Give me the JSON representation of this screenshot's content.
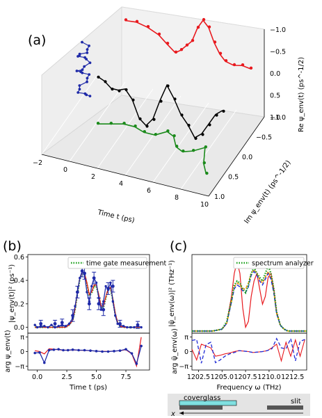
{
  "panels": {
    "a": "(a)",
    "b": "(b)",
    "c": "(c)"
  },
  "colors": {
    "red": "#e8191e",
    "black": "#000000",
    "blue": "#1f2aa8",
    "green": "#1b8a1b",
    "orange": "#ff8c00",
    "dash_blue": "#1f2ad6",
    "dot_green": "#1aa01a",
    "cyan": "#7fdfe0"
  },
  "chart_data": [
    {
      "type": "line",
      "panel": "a",
      "title": "",
      "xlabel": "Time t (ps)",
      "ylabel": "Im ψ_env(t) (ps^-1/2)",
      "zlabel": "Re ψ_env(t) (ps^-1/2)",
      "x_ticks": [
        "−2",
        "0",
        "2",
        "4",
        "6",
        "8",
        "10"
      ],
      "y_ticks": [
        "−1.0",
        "−0.5",
        "0.0",
        "0.5",
        "1.0"
      ],
      "z_ticks": [
        "−1.0",
        "−0.5",
        "0.0",
        "0.5",
        "1.0"
      ],
      "series": [
        {
          "projection": "Re",
          "color": "red",
          "t": [
            0.0,
            0.8,
            1.6,
            2.4,
            3.0,
            3.6,
            4.0,
            4.4,
            4.8,
            5.2,
            5.6,
            6.0,
            6.4,
            6.8,
            7.2,
            7.8,
            8.4,
            9.0
          ],
          "value": [
            0.45,
            0.48,
            0.42,
            0.3,
            0.12,
            -0.05,
            0.05,
            0.2,
            0.35,
            0.72,
            0.95,
            0.8,
            0.45,
            0.2,
            0.05,
            0.0,
            0.05,
            0.02
          ]
        },
        {
          "projection": "complex",
          "color": "black",
          "t": [
            0.0,
            0.5,
            1.0,
            1.5,
            2.0,
            2.5,
            3.0,
            3.5,
            4.0,
            4.5,
            5.0,
            5.5,
            6.0,
            6.5,
            7.0,
            7.5,
            8.0,
            8.5,
            9.0
          ],
          "value": [
            -0.05,
            -0.1,
            -0.2,
            -0.2,
            -0.15,
            -0.3,
            -0.6,
            -0.7,
            -0.55,
            -0.2,
            0.1,
            -0.1,
            -0.35,
            -0.5,
            -0.7,
            -0.6,
            -0.4,
            -0.2,
            -0.1
          ]
        },
        {
          "projection": "Im",
          "color": "green",
          "t": [
            0.0,
            0.8,
            1.6,
            2.4,
            3.2,
            4.0,
            4.6,
            5.2,
            5.8,
            6.4,
            7.0,
            7.6,
            8.2,
            8.8
          ],
          "value": [
            0.0,
            0.05,
            0.1,
            0.1,
            0.05,
            0.05,
            0.15,
            0.1,
            -0.05,
            -0.1,
            -0.05,
            0.05,
            -0.2,
            -0.35
          ]
        },
        {
          "projection": "Re-Im",
          "color": "blue",
          "t": [
            0,
            1,
            2,
            3,
            4,
            5,
            6,
            7,
            8,
            9,
            10,
            11,
            12,
            13,
            14,
            15,
            16,
            17,
            18,
            19,
            20,
            21,
            22,
            23
          ],
          "value": [
            0.1,
            0.4,
            0.7,
            0.9,
            0.6,
            0.3,
            0.0,
            -0.3,
            -0.5,
            -0.2,
            0.1,
            0.3,
            0.0,
            -0.4,
            -0.7,
            -0.9,
            -0.6,
            -0.3,
            0.0,
            0.3,
            0.5,
            0.2,
            -0.1,
            -0.4
          ]
        }
      ]
    },
    {
      "type": "line",
      "panel": "b",
      "title": "",
      "xlabel": "Time t (ps)",
      "ylabel_top": "|ψ_env(t)|² (ps⁻¹)",
      "ylabel_bottom": "arg ψ_env(t)",
      "legend": "time gate measurement",
      "legend_position": "top-right",
      "xlim": [
        -0.8,
        9.5
      ],
      "x_ticks": [
        "0.0",
        "2.5",
        "5.0",
        "7.5"
      ],
      "ylim_top": [
        -0.05,
        0.62
      ],
      "y_ticks_top": [
        "0.0",
        "0.2",
        "0.4",
        "0.6"
      ],
      "y_ticks_bottom": [
        "π",
        "0",
        "−π"
      ],
      "magnitude": {
        "x": [
          -0.2,
          0.0,
          0.3,
          0.6,
          0.9,
          1.2,
          1.5,
          1.8,
          2.1,
          2.4,
          2.7,
          3.0,
          3.2,
          3.4,
          3.6,
          3.8,
          4.0,
          4.2,
          4.4,
          4.6,
          4.8,
          5.0,
          5.2,
          5.4,
          5.6,
          5.8,
          6.0,
          6.2,
          6.4,
          6.6,
          6.8,
          7.0,
          7.3,
          7.6,
          7.9,
          8.2,
          8.5,
          8.8
        ],
        "data": [
          0.02,
          0.0,
          0.01,
          0.01,
          0.0,
          0.02,
          0.0,
          0.01,
          0.02,
          0.01,
          0.03,
          0.08,
          0.18,
          0.3,
          0.42,
          0.48,
          0.45,
          0.3,
          0.22,
          0.35,
          0.42,
          0.38,
          0.25,
          0.15,
          0.22,
          0.35,
          0.32,
          0.38,
          0.22,
          0.1,
          0.03,
          0.02,
          0.01,
          0.0,
          0.0,
          0.0,
          0.01,
          0.0
        ],
        "fit_red": [
          0.0,
          0.0,
          0.0,
          0.0,
          0.0,
          0.0,
          0.0,
          0.0,
          0.0,
          0.0,
          0.02,
          0.06,
          0.16,
          0.3,
          0.42,
          0.47,
          0.46,
          0.38,
          0.28,
          0.3,
          0.36,
          0.36,
          0.28,
          0.18,
          0.18,
          0.26,
          0.33,
          0.34,
          0.24,
          0.12,
          0.04,
          0.01,
          0.0,
          0.0,
          0.0,
          0.0,
          0.0,
          0.0
        ],
        "gate_green": [
          0.0,
          0.0,
          0.0,
          0.0,
          0.0,
          0.0,
          0.0,
          0.0,
          0.0,
          0.0,
          0.02,
          0.06,
          0.15,
          0.29,
          0.41,
          0.46,
          0.45,
          0.37,
          0.27,
          0.29,
          0.35,
          0.35,
          0.27,
          0.17,
          0.17,
          0.25,
          0.32,
          0.33,
          0.23,
          0.11,
          0.04,
          0.01,
          0.0,
          0.0,
          0.0,
          0.0,
          0.0,
          0.0
        ],
        "errorbar_x": [
          0.3,
          1.5,
          2.1,
          3.0,
          3.4,
          3.8,
          4.0,
          4.4,
          4.8,
          5.2,
          5.6,
          6.0,
          6.4,
          7.0,
          8.5
        ],
        "errorbar_y": [
          0.03,
          0.03,
          0.04,
          0.1,
          0.3,
          0.48,
          0.46,
          0.2,
          0.42,
          0.2,
          0.15,
          0.33,
          0.35,
          0.03,
          0.02
        ],
        "errorbar_err": [
          0.03,
          0.03,
          0.03,
          0.05,
          0.05,
          0.05,
          0.05,
          0.05,
          0.05,
          0.05,
          0.05,
          0.05,
          0.05,
          0.03,
          0.03
        ]
      },
      "phase": {
        "x": [
          -0.2,
          0.2,
          0.6,
          1.0,
          1.4,
          1.8,
          2.2,
          2.6,
          3.0,
          3.5,
          4.0,
          4.5,
          5.0,
          5.5,
          6.0,
          6.5,
          7.0,
          7.5,
          8.0,
          8.4,
          8.8
        ],
        "data": [
          -0.3,
          -0.2,
          -2.4,
          0.3,
          0.4,
          0.5,
          0.3,
          0.3,
          0.4,
          0.3,
          0.3,
          0.2,
          0.1,
          0.0,
          0.0,
          0.1,
          0.2,
          0.5,
          -0.4,
          -2.6,
          1.2
        ],
        "fit_red": [
          0.2,
          0.0,
          -0.5,
          0.6,
          0.5,
          0.4,
          0.3,
          0.3,
          0.35,
          0.3,
          0.25,
          0.2,
          0.1,
          0.05,
          0.05,
          0.1,
          0.2,
          0.4,
          -0.5,
          -3.1,
          3.1
        ]
      }
    },
    {
      "type": "line",
      "panel": "c",
      "title": "",
      "xlabel": "Frequency ω (THz)",
      "ylabel_top": "|ψ̃_env(ω)|² (THz⁻¹)",
      "ylabel_bottom": "arg ψ̃_env(ω)",
      "legend": "spectrum analyzer",
      "legend_position": "top-right",
      "xlim": [
        1201.8,
        1214.0
      ],
      "x_ticks": [
        "1202.5",
        "1205.0",
        "1207.5",
        "1210.0",
        "1212.5"
      ],
      "y_ticks_bottom": [
        "π",
        "0",
        "−π"
      ],
      "spectrum": {
        "x": [
          1201.8,
          1203.0,
          1204.0,
          1205.0,
          1205.5,
          1206.0,
          1206.3,
          1206.6,
          1206.9,
          1207.2,
          1207.5,
          1207.8,
          1208.1,
          1208.4,
          1208.7,
          1209.0,
          1209.3,
          1209.6,
          1209.9,
          1210.2,
          1210.5,
          1210.8,
          1211.2,
          1211.6,
          1212.0,
          1213.0,
          1214.0
        ],
        "red": [
          0.0,
          0.0,
          0.0,
          0.01,
          0.04,
          0.18,
          0.3,
          0.36,
          0.3,
          0.12,
          0.02,
          0.05,
          0.18,
          0.26,
          0.3,
          0.22,
          0.14,
          0.18,
          0.28,
          0.3,
          0.22,
          0.1,
          0.03,
          0.01,
          0.0,
          0.0,
          0.0
        ],
        "green": [
          0.0,
          0.0,
          0.0,
          0.01,
          0.05,
          0.16,
          0.24,
          0.26,
          0.25,
          0.22,
          0.2,
          0.24,
          0.3,
          0.33,
          0.3,
          0.28,
          0.26,
          0.3,
          0.34,
          0.3,
          0.22,
          0.1,
          0.03,
          0.01,
          0.0,
          0.0,
          0.0
        ],
        "orange": [
          0.0,
          0.0,
          0.0,
          0.01,
          0.04,
          0.15,
          0.23,
          0.25,
          0.24,
          0.22,
          0.22,
          0.25,
          0.3,
          0.32,
          0.3,
          0.27,
          0.25,
          0.28,
          0.31,
          0.28,
          0.2,
          0.09,
          0.03,
          0.01,
          0.0,
          0.0,
          0.0
        ],
        "blue": [
          0.0,
          0.0,
          0.0,
          0.01,
          0.04,
          0.15,
          0.22,
          0.24,
          0.23,
          0.21,
          0.2,
          0.23,
          0.29,
          0.31,
          0.29,
          0.26,
          0.24,
          0.27,
          0.3,
          0.27,
          0.2,
          0.09,
          0.03,
          0.01,
          0.0,
          0.0,
          0.0
        ]
      },
      "phase": {
        "x": [
          1201.8,
          1202.3,
          1202.8,
          1203.3,
          1203.8,
          1204.3,
          1204.8,
          1205.3,
          1205.8,
          1206.3,
          1206.8,
          1207.3,
          1207.8,
          1208.3,
          1208.8,
          1209.3,
          1209.8,
          1210.3,
          1210.8,
          1211.3,
          1211.8,
          1212.3,
          1212.8,
          1213.3,
          1213.8
        ],
        "red": [
          0.5,
          -1.8,
          1.6,
          1.2,
          0.8,
          -1.0,
          -0.8,
          -0.5,
          -0.3,
          0.0,
          0.2,
          0.1,
          0.0,
          -0.2,
          -0.1,
          0.0,
          0.2,
          0.8,
          1.6,
          -2.0,
          2.0,
          -1.0,
          2.5,
          -1.0,
          2.6
        ],
        "blue": [
          2.4,
          2.6,
          -2.5,
          1.5,
          2.0,
          -2.4,
          -1.8,
          -1.0,
          -0.5,
          -0.2,
          0.2,
          0.1,
          0.0,
          -0.2,
          -0.1,
          0.0,
          0.2,
          0.6,
          2.8,
          0.8,
          0.6,
          2.8,
          -2.0,
          2.2,
          2.6
        ]
      }
    }
  ],
  "diagram": {
    "coverglass_label": "coverglass",
    "slit_label": "slit",
    "axis_label": "x"
  }
}
